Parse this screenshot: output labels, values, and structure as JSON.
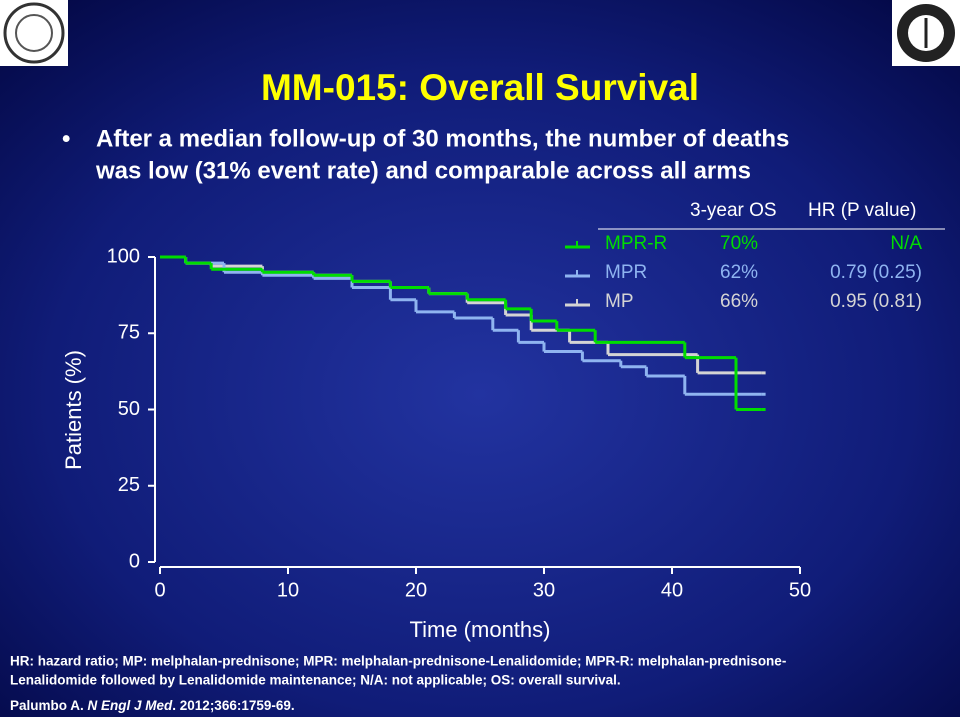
{
  "title": "MM-015: Overall Survival",
  "bullet": [
    "After a median follow-up of 30 months, the number of deaths",
    "was low (31% event rate) and comparable across all arms"
  ],
  "chart_data": {
    "type": "step",
    "x_label": "Time (months)",
    "y_label": "Patients (%)",
    "xlim": [
      0,
      50
    ],
    "xticks": [
      0,
      10,
      20,
      30,
      40,
      50
    ],
    "ylim": [
      0,
      100
    ],
    "yticks": [
      0,
      25,
      50,
      75,
      100
    ],
    "table_header": [
      "3-year OS",
      "HR (P value)"
    ],
    "series": [
      {
        "name": "MPR-R",
        "color": "#00dd00",
        "os_3yr": "70%",
        "hr": "N/A",
        "x": [
          0,
          2,
          4,
          8,
          12,
          15,
          18,
          21,
          24,
          27,
          29,
          31,
          34,
          41,
          45,
          47
        ],
        "values": [
          100,
          98,
          96,
          95,
          94,
          92,
          90,
          88,
          86,
          83,
          79,
          76,
          72,
          67,
          50,
          50
        ]
      },
      {
        "name": "MPR",
        "color": "#8fb4f0",
        "os_3yr": "62%",
        "hr": "0.79 (0.25)",
        "x": [
          0,
          2,
          5,
          8,
          12,
          15,
          18,
          20,
          23,
          26,
          28,
          30,
          33,
          36,
          38,
          41,
          47
        ],
        "values": [
          100,
          98,
          95,
          94,
          93,
          90,
          86,
          82,
          80,
          76,
          72,
          69,
          66,
          64,
          61,
          55,
          55
        ]
      },
      {
        "name": "MP",
        "color": "#d4d4d4",
        "os_3yr": "66%",
        "hr": "0.95 (0.81)",
        "x": [
          0,
          2,
          4,
          8,
          12,
          15,
          18,
          21,
          24,
          27,
          29,
          32,
          35,
          42,
          47
        ],
        "values": [
          100,
          98,
          97,
          95,
          94,
          92,
          90,
          88,
          85,
          81,
          76,
          72,
          68,
          62,
          62
        ]
      }
    ]
  },
  "footnote": [
    "HR: hazard ratio; MP: melphalan-prednisone; MPR: melphalan-prednisone-Lenalidomide; MPR-R: melphalan-prednisone-",
    "Lenalidomide followed by Lenalidomide maintenance; N/A: not applicable; OS: overall survival."
  ],
  "citation": [
    "Palumbo A. ",
    "N Engl J Med",
    ". 2012;366:1759-69."
  ]
}
